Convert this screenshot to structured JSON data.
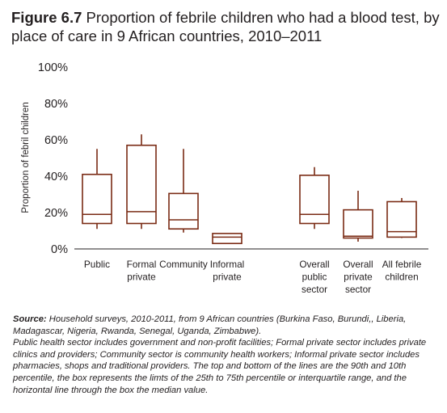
{
  "figure": {
    "number": "Figure 6.7",
    "title": "Proportion of febrile children who had a blood test, by place of care in 9 African countries, 2010–2011"
  },
  "chart_data": {
    "type": "boxplot",
    "ylabel": "Proportion of febril children",
    "xlabel": "",
    "ylim": [
      0,
      100
    ],
    "y_ticks": [
      "0%",
      "20%",
      "40%",
      "60%",
      "80%",
      "100%"
    ],
    "grid": false,
    "box_color": "#7a2b14",
    "categories": [
      {
        "label": [
          "Public"
        ],
        "p10": 11,
        "p25": 14,
        "median": 19,
        "p75": 41,
        "p90": 55
      },
      {
        "label": [
          "Formal",
          "private"
        ],
        "p10": 11,
        "p25": 14,
        "median": 20.5,
        "p75": 57,
        "p90": 63
      },
      {
        "label": [
          "Community"
        ],
        "p10": 9,
        "p25": 11,
        "median": 16,
        "p75": 30.5,
        "p90": 55
      },
      {
        "label": [
          "Informal",
          "private"
        ],
        "p10": 3,
        "p25": 3,
        "median": 6.5,
        "p75": 8.5,
        "p90": 8.5
      },
      {
        "label": [
          "Overall",
          "public",
          "sector"
        ],
        "p10": 11,
        "p25": 14,
        "median": 19,
        "p75": 40.5,
        "p90": 45
      },
      {
        "label": [
          "Overall",
          "private",
          "sector"
        ],
        "p10": 4,
        "p25": 6,
        "median": 7,
        "p75": 21.5,
        "p90": 32
      },
      {
        "label": [
          "All febrile",
          "children"
        ],
        "p10": 6,
        "p25": 6.5,
        "median": 9.5,
        "p75": 26,
        "p90": 28
      }
    ]
  },
  "notes": {
    "source_label": "Source:",
    "source_text": " Household surveys, 2010-2011, from 9 African countries (Burkina Faso, Burundi,, Liberia, Madagascar, Nigeria, Rwanda, Senegal, Uganda, Zimbabwe).",
    "definitions": "Public health sector includes government and non-profit facilities; Formal private sector includes private clinics and providers; Community sector is community health workers; Informal private sector includes pharmacies, shops and traditional providers. The top and bottom of the lines are the 90th and 10th percentile, the box represents the limts of the 25th to 75th percentile or interquartile range, and the horizontal line through the box the median value."
  }
}
